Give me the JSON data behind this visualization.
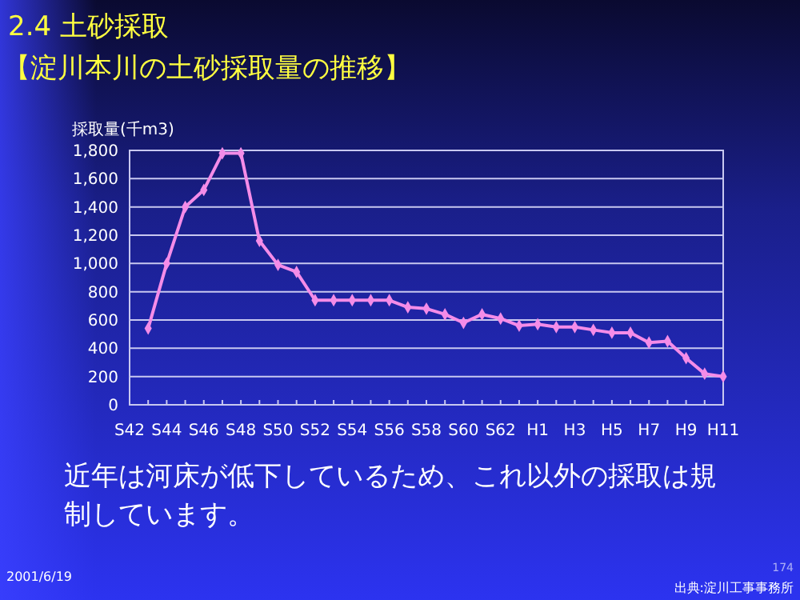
{
  "chart_data": {
    "type": "line",
    "title": "2.4  土砂採取",
    "subtitle": "【淀川本川の土砂採取量の推移】",
    "ylabel": "採取量(千m3)",
    "categories": [
      "S42",
      null,
      "S44",
      null,
      "S46",
      null,
      "S48",
      null,
      "S50",
      null,
      "S52",
      null,
      "S54",
      null,
      "S56",
      null,
      "S58",
      null,
      "S60",
      null,
      "S62",
      null,
      "H1",
      null,
      "H3",
      null,
      "H5",
      null,
      "H7",
      null,
      "H9",
      null,
      "H11"
    ],
    "series": [
      {
        "color": "#f48ce8",
        "values": [
          null,
          540,
          1000,
          1400,
          1520,
          1780,
          1780,
          1160,
          990,
          940,
          740,
          740,
          740,
          740,
          740,
          690,
          680,
          640,
          580,
          640,
          610,
          560,
          570,
          550,
          550,
          530,
          510,
          510,
          440,
          450,
          330,
          220,
          200
        ]
      }
    ],
    "ylim": [
      0,
      1800
    ],
    "yticks": [
      0,
      {
        "value": 200,
        "label": "200"
      },
      {
        "value": 400,
        "label": "400"
      },
      {
        "value": 600,
        "label": "600"
      },
      {
        "value": 800,
        "label": "800"
      },
      {
        "value": 1000,
        "label": "1,000"
      },
      {
        "value": 1200,
        "label": "1,200"
      },
      {
        "value": 1400,
        "label": "1,400"
      },
      {
        "value": 1600,
        "label": "1,600"
      },
      {
        "value": 1800,
        "label": "1,800"
      }
    ],
    "grid": "y",
    "marker": "diamond",
    "line_style": "solid",
    "annotations": [
      "近年は河床が低下しているため、これ以外の採取は規制しています。",
      "2001/6/19",
      "出典:淀川工事事務所",
      "174"
    ]
  }
}
